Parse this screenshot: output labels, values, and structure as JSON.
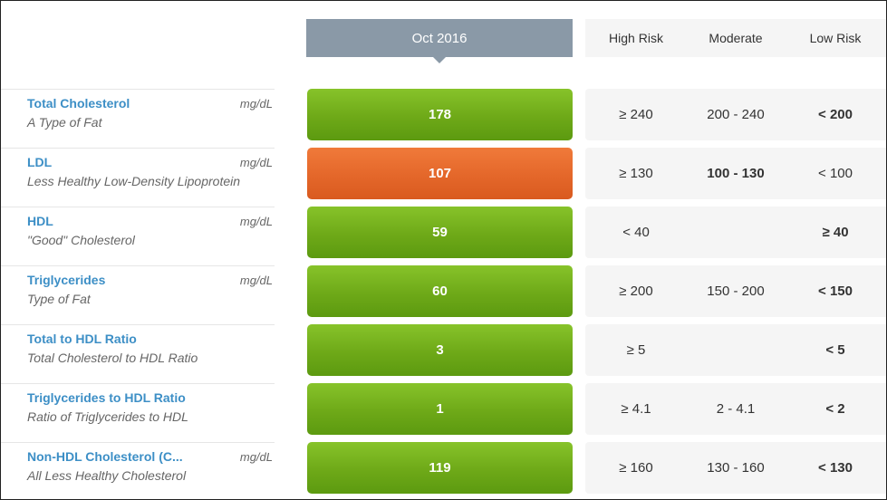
{
  "header": {
    "date_label": "Oct 2016",
    "risk_columns": [
      "High Risk",
      "Moderate",
      "Low Risk"
    ]
  },
  "colors": {
    "normal": "#6ea918",
    "warning": "#e4672a",
    "header": "#8a99a7",
    "link": "#3d8fc6"
  },
  "rows": [
    {
      "name": "Total Cholesterol",
      "description": "A Type of Fat",
      "unit": "mg/dL",
      "value": "178",
      "status": "green",
      "high": "≥ 240",
      "moderate": "200 - 240",
      "low": "< 200",
      "bold": "low"
    },
    {
      "name": "LDL",
      "description": "Less Healthy Low-Density Lipoprotein",
      "unit": "mg/dL",
      "value": "107",
      "status": "orange",
      "high": "≥ 130",
      "moderate": "100 - 130",
      "low": "< 100",
      "bold": "moderate"
    },
    {
      "name": "HDL",
      "description": "\"Good\" Cholesterol",
      "unit": "mg/dL",
      "value": "59",
      "status": "green",
      "high": "< 40",
      "moderate": "",
      "low": "≥ 40",
      "bold": "low"
    },
    {
      "name": "Triglycerides",
      "description": "Type of Fat",
      "unit": "mg/dL",
      "value": "60",
      "status": "green",
      "high": "≥ 200",
      "moderate": "150 - 200",
      "low": "< 150",
      "bold": "low"
    },
    {
      "name": "Total to HDL Ratio",
      "description": "Total Cholesterol to HDL Ratio",
      "unit": "",
      "value": "3",
      "status": "green",
      "high": "≥ 5",
      "moderate": "",
      "low": "< 5",
      "bold": "low"
    },
    {
      "name": "Triglycerides to HDL Ratio",
      "description": "Ratio of Triglycerides to HDL",
      "unit": "",
      "value": "1",
      "status": "green",
      "high": "≥ 4.1",
      "moderate": "2 - 4.1",
      "low": "< 2",
      "bold": "low"
    },
    {
      "name": "Non-HDL Cholesterol (C...",
      "description": "All Less Healthy Cholesterol",
      "unit": "mg/dL",
      "value": "119",
      "status": "green",
      "high": "≥ 160",
      "moderate": "130 - 160",
      "low": "< 130",
      "bold": "low"
    }
  ]
}
